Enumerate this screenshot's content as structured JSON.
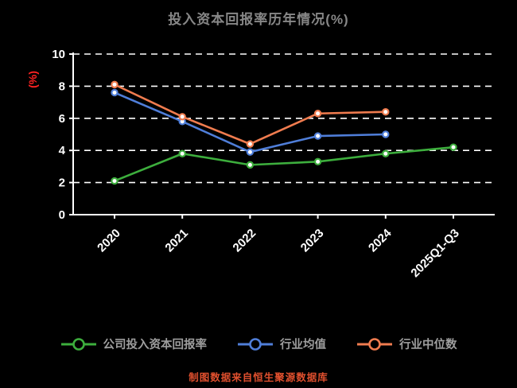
{
  "title": "投入资本回报率历年情况(%)",
  "ylabel": "(%)",
  "footer": "制图数据来自恒生聚源数据库",
  "colors": {
    "background": "#000000",
    "title": "#878787",
    "axis": "#ffffff",
    "grid": "#ffffff",
    "tick_label": "#ffffff",
    "ylabel": "#ff2222",
    "legend_text": "#9e9e9e",
    "footer": "#e1502e"
  },
  "chart_data": {
    "type": "line",
    "title": "投入资本回报率历年情况(%)",
    "xlabel": "",
    "ylabel": "(%)",
    "categories": [
      "2020",
      "2021",
      "2022",
      "2023",
      "2024",
      "2025Q1-Q3"
    ],
    "series": [
      {
        "name": "公司投入资本回报率",
        "color": "#3dae3d",
        "values": [
          2.1,
          3.8,
          3.1,
          3.3,
          3.8,
          4.2
        ]
      },
      {
        "name": "行业均值",
        "color": "#4f7ed9",
        "values": [
          7.6,
          5.8,
          3.9,
          4.9,
          5.0,
          null
        ]
      },
      {
        "name": "行业中位数",
        "color": "#f07c4f",
        "values": [
          8.1,
          6.1,
          4.4,
          6.3,
          6.4,
          null
        ]
      }
    ],
    "ylim": [
      0,
      10
    ],
    "yticks": [
      0,
      2,
      4,
      6,
      8,
      10
    ],
    "grid": true,
    "grid_style": "dashed",
    "legend_position": "bottom"
  }
}
